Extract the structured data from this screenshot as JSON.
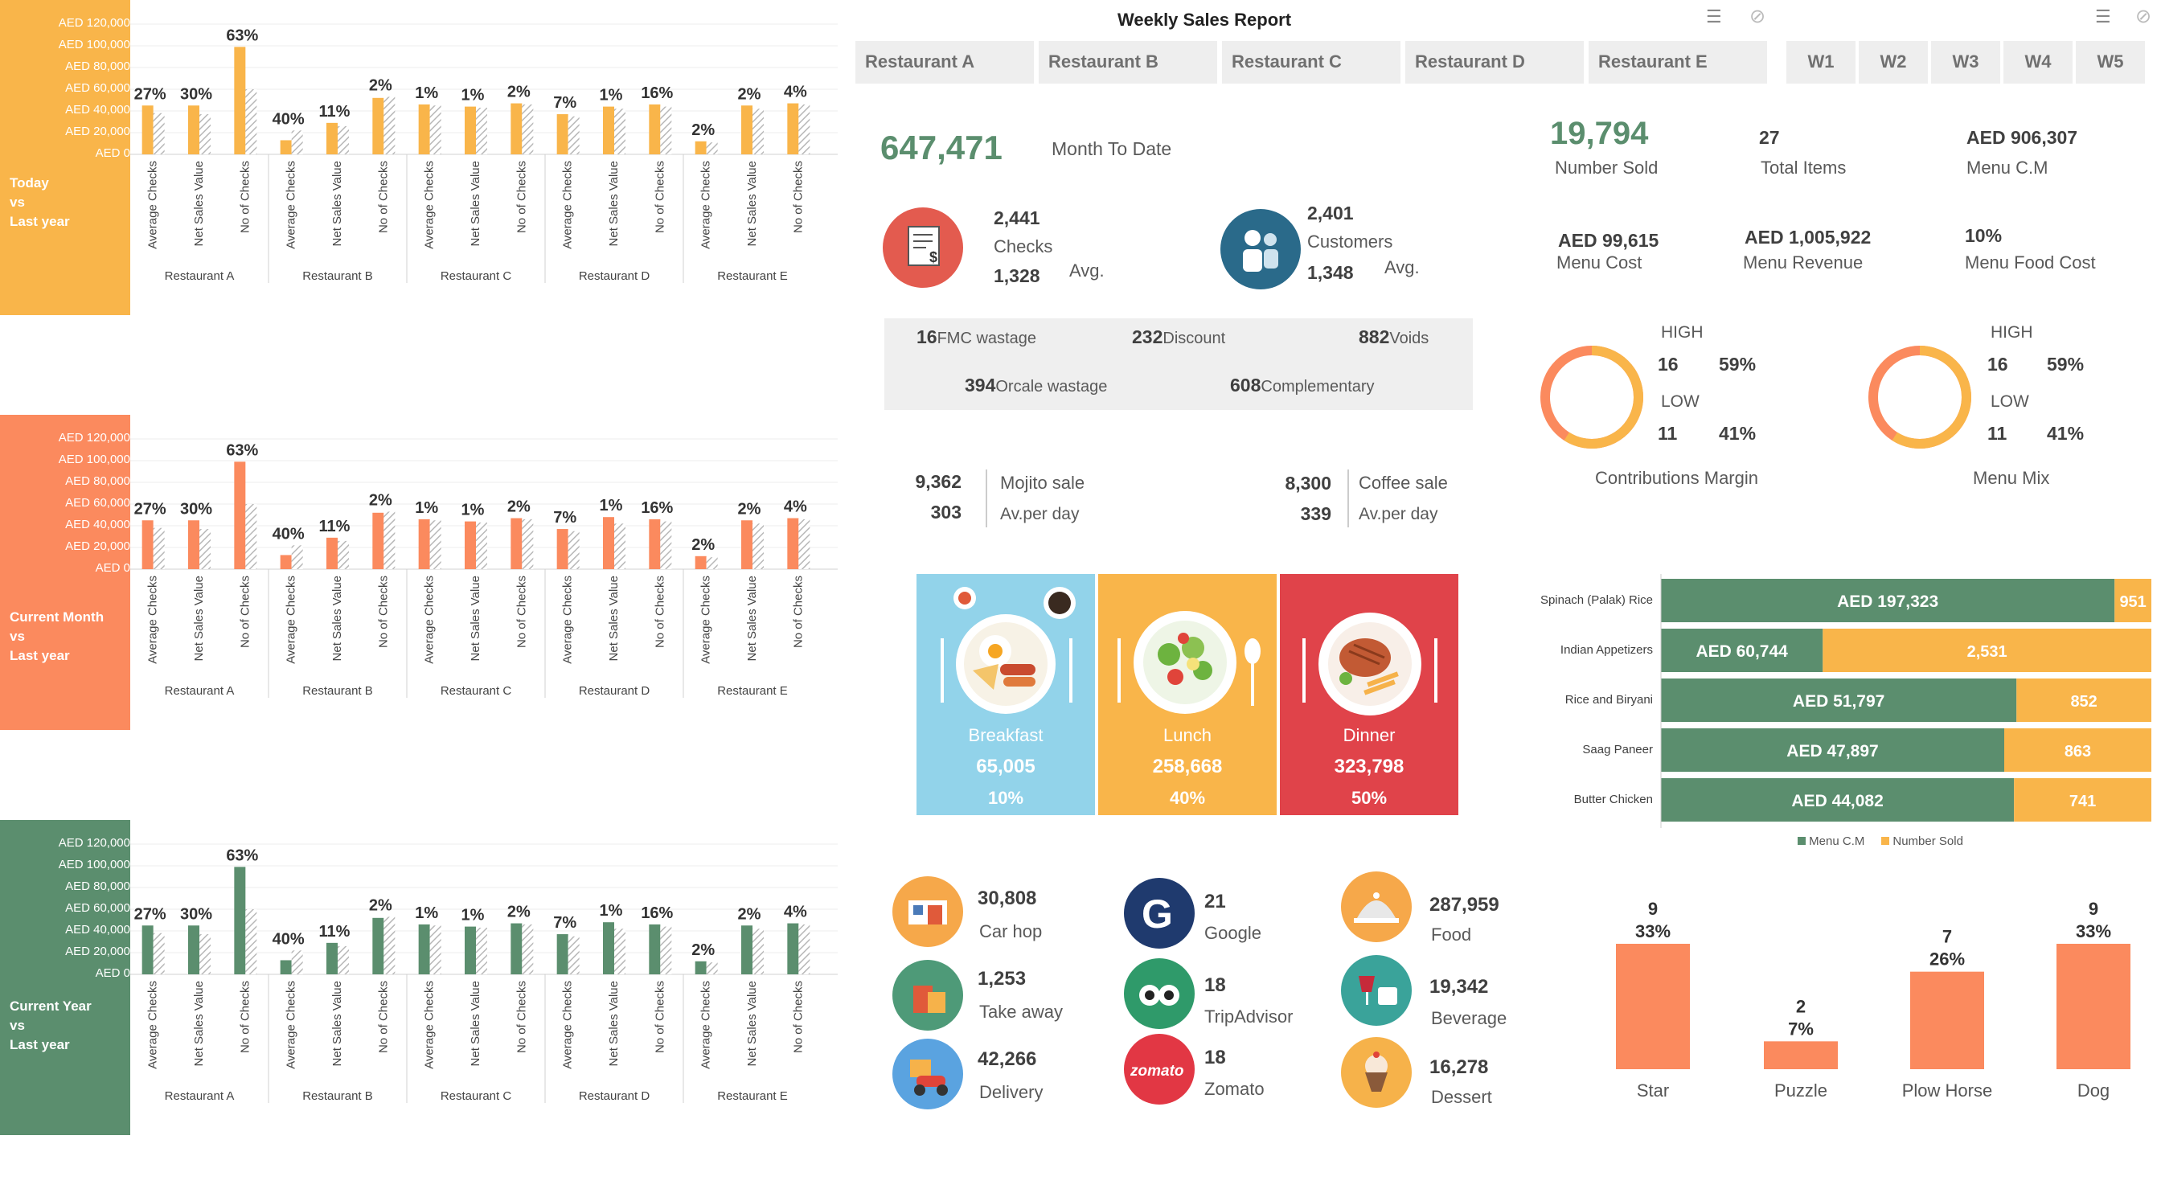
{
  "header": {
    "title": "Weekly Sales Report"
  },
  "tabs": [
    "Restaurant A",
    "Restaurant B",
    "Restaurant C",
    "Restaurant D",
    "Restaurant E"
  ],
  "weeks": [
    "W1",
    "W2",
    "W3",
    "W4",
    "W5"
  ],
  "mtd": {
    "value": "647,471",
    "label": "Month To Date"
  },
  "checks": {
    "value": "2,441",
    "label": "Checks",
    "avg": "1,328",
    "avg_label": "Avg."
  },
  "customers": {
    "value": "2,401",
    "label": "Customers",
    "avg": "1,348",
    "avg_label": "Avg."
  },
  "wastage": {
    "fmc_value": "16",
    "fmc_label": "FMC wastage",
    "discount_value": "232",
    "discount_label": "Discount",
    "voids_value": "882",
    "voids_label": "Voids",
    "orcale_value": "394",
    "orcale_label": "Orcale wastage",
    "comp_value": "608",
    "comp_label": "Complementary"
  },
  "mojito": {
    "value": "9,362",
    "label": "Mojito sale",
    "perday": "303",
    "perday_label": "Av.per day"
  },
  "coffee": {
    "value": "8,300",
    "label": "Coffee sale",
    "perday": "339",
    "perday_label": "Av.per day"
  },
  "meals": [
    {
      "name": "Breakfast",
      "value": "65,005",
      "pct": "10%",
      "color": "#92d3ea"
    },
    {
      "name": "Lunch",
      "value": "258,668",
      "pct": "40%",
      "color": "#f9b54a"
    },
    {
      "name": "Dinner",
      "value": "323,798",
      "pct": "50%",
      "color": "#e0434a"
    }
  ],
  "channels": [
    {
      "value": "30,808",
      "label": "Car hop",
      "icon": "car-hop-icon",
      "color": "#f6a84a"
    },
    {
      "value": "1,253",
      "label": "Take away",
      "icon": "take-away-icon",
      "color": "#4e9a78"
    },
    {
      "value": "42,266",
      "label": "Delivery",
      "icon": "delivery-icon",
      "color": "#5aa3e0"
    },
    {
      "value": "21",
      "label": "Google",
      "icon": "google-icon",
      "color": "#1f3a6e"
    },
    {
      "value": "18",
      "label": "TripAdvisor",
      "icon": "tripadvisor-icon",
      "color": "#2f9a6a"
    },
    {
      "value": "18",
      "label": "Zomato",
      "icon": "zomato-icon",
      "color": "#e23744"
    },
    {
      "value": "287,959",
      "label": "Food",
      "icon": "food-icon",
      "color": "#f6a84a"
    },
    {
      "value": "19,342",
      "label": "Beverage",
      "icon": "beverage-icon",
      "color": "#3aa39a"
    },
    {
      "value": "16,278",
      "label": "Dessert",
      "icon": "dessert-icon",
      "color": "#f6b24a"
    }
  ],
  "menu_stats": {
    "number_sold": "19,794",
    "number_sold_label": "Number Sold",
    "total_items": "27",
    "total_items_label": "Total Items",
    "menu_cm": "AED 906,307",
    "menu_cm_label": "Menu C.M",
    "menu_cost": "AED 99,615",
    "menu_cost_label": "Menu Cost",
    "menu_revenue": "AED 1,005,922",
    "menu_revenue_label": "Menu Revenue",
    "food_cost": "10%",
    "food_cost_label": "Menu Food Cost"
  },
  "donuts": [
    {
      "title": "Contributions Margin",
      "high_label": "HIGH",
      "high_count": "16",
      "high_pct": "59%",
      "low_label": "LOW",
      "low_count": "11",
      "low_pct": "41%",
      "high_fraction": 0.59
    },
    {
      "title": "Menu Mix",
      "high_label": "HIGH",
      "high_count": "16",
      "high_pct": "59%",
      "low_label": "LOW",
      "low_count": "11",
      "low_pct": "41%",
      "high_fraction": 0.59
    }
  ],
  "side_labels": [
    [
      "Today",
      "vs",
      "Last year"
    ],
    [
      "Current Month",
      "vs",
      "Last year"
    ],
    [
      "Current Year",
      "vs",
      "Last year"
    ]
  ],
  "chart_data": [
    {
      "type": "bar",
      "title": "Today vs Last year",
      "yticks": [
        "AED 120,000",
        "AED 100,000",
        "AED 80,000",
        "AED 60,000",
        "AED 40,000",
        "AED 20,000",
        "AED 0"
      ],
      "ylim": [
        0,
        120000
      ],
      "groups": [
        "Restaurant A",
        "Restaurant B",
        "Restaurant C",
        "Restaurant D",
        "Restaurant E"
      ],
      "categories": [
        "Average Checks",
        "Net Sales Value",
        "No of Checks"
      ],
      "current": [
        [
          45000,
          45000,
          99000
        ],
        [
          13000,
          29000,
          52000
        ],
        [
          46000,
          44000,
          47000
        ],
        [
          37000,
          44000,
          46000
        ],
        [
          12000,
          45000,
          47000
        ]
      ],
      "last_year": [
        [
          38000,
          37000,
          60000
        ],
        [
          22000,
          26000,
          53000
        ],
        [
          45000,
          43000,
          46000
        ],
        [
          35000,
          42000,
          44000
        ],
        [
          11000,
          42000,
          46000
        ]
      ],
      "labels": [
        [
          "27%",
          "30%",
          "63%"
        ],
        [
          "40%",
          "11%",
          "2%"
        ],
        [
          "1%",
          "1%",
          "2%"
        ],
        [
          "7%",
          "1%",
          "16%"
        ],
        [
          "2%",
          "2%",
          "4%"
        ]
      ],
      "color": "#f9b54a"
    },
    {
      "type": "bar",
      "title": "Current Month vs Last year",
      "yticks": [
        "AED 120,000",
        "AED 100,000",
        "AED 80,000",
        "AED 60,000",
        "AED 40,000",
        "AED 20,000",
        "AED 0"
      ],
      "ylim": [
        0,
        120000
      ],
      "groups": [
        "Restaurant A",
        "Restaurant B",
        "Restaurant C",
        "Restaurant D",
        "Restaurant E"
      ],
      "categories": [
        "Average Checks",
        "Net Sales Value",
        "No of Checks"
      ],
      "current": [
        [
          45000,
          45000,
          99000
        ],
        [
          13000,
          29000,
          52000
        ],
        [
          46000,
          44000,
          47000
        ],
        [
          37000,
          48000,
          46000
        ],
        [
          12000,
          45000,
          47000
        ]
      ],
      "last_year": [
        [
          38000,
          37000,
          60000
        ],
        [
          22000,
          26000,
          53000
        ],
        [
          45000,
          43000,
          46000
        ],
        [
          35000,
          42000,
          44000
        ],
        [
          11000,
          42000,
          46000
        ]
      ],
      "labels": [
        [
          "27%",
          "30%",
          "63%"
        ],
        [
          "40%",
          "11%",
          "2%"
        ],
        [
          "1%",
          "1%",
          "2%"
        ],
        [
          "7%",
          "1%",
          "16%"
        ],
        [
          "2%",
          "2%",
          "4%"
        ]
      ],
      "color": "#fb8a5e"
    },
    {
      "type": "bar",
      "title": "Current Year vs Last year",
      "yticks": [
        "AED 120,000",
        "AED 100,000",
        "AED 80,000",
        "AED 60,000",
        "AED 40,000",
        "AED 20,000",
        "AED 0"
      ],
      "ylim": [
        0,
        120000
      ],
      "groups": [
        "Restaurant A",
        "Restaurant B",
        "Restaurant C",
        "Restaurant D",
        "Restaurant E"
      ],
      "categories": [
        "Average Checks",
        "Net Sales Value",
        "No of Checks"
      ],
      "current": [
        [
          45000,
          45000,
          99000
        ],
        [
          13000,
          29000,
          52000
        ],
        [
          46000,
          44000,
          47000
        ],
        [
          37000,
          48000,
          46000
        ],
        [
          12000,
          45000,
          47000
        ]
      ],
      "last_year": [
        [
          38000,
          37000,
          60000
        ],
        [
          22000,
          26000,
          53000
        ],
        [
          45000,
          43000,
          46000
        ],
        [
          35000,
          42000,
          44000
        ],
        [
          11000,
          42000,
          46000
        ]
      ],
      "labels": [
        [
          "27%",
          "30%",
          "63%"
        ],
        [
          "40%",
          "11%",
          "2%"
        ],
        [
          "1%",
          "1%",
          "2%"
        ],
        [
          "7%",
          "1%",
          "16%"
        ],
        [
          "2%",
          "2%",
          "4%"
        ]
      ],
      "color": "#5b8e6e"
    },
    {
      "type": "bar",
      "title": "Menu items",
      "orientation": "horizontal-stacked",
      "categories": [
        "Spinach (Palak) Rice",
        "Indian Appetizers",
        "Rice and Biryani",
        "Saag Paneer",
        "Butter Chicken"
      ],
      "series": [
        {
          "name": "Menu C.M",
          "values": [
            197323,
            60744,
            51797,
            47897,
            44082
          ],
          "labels": [
            "AED 197,323",
            "AED 60,744",
            "AED 51,797",
            "AED 47,897",
            "AED 44,082"
          ],
          "color": "#5b8e6e"
        },
        {
          "name": "Number Sold",
          "values": [
            951,
            2531,
            852,
            863,
            741
          ],
          "labels": [
            "951",
            "2,531",
            "852",
            "863",
            "741"
          ],
          "color": "#f9b54a"
        }
      ],
      "fractions": [
        0.925,
        0.33,
        0.725,
        0.7,
        0.72
      ],
      "legend": "bottom"
    },
    {
      "type": "bar",
      "title": "Menu Engineering",
      "categories": [
        "Star",
        "Puzzle",
        "Plow Horse",
        "Dog"
      ],
      "values": [
        9,
        2,
        7,
        9
      ],
      "pcts": [
        "33%",
        "7%",
        "26%",
        "33%"
      ],
      "color": "#fb8a5e",
      "ylim": [
        0,
        9
      ]
    }
  ]
}
